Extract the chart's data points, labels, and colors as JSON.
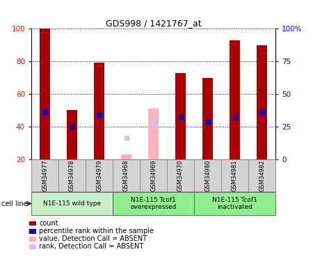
{
  "title": "GDS998 / 1421767_at",
  "samples": [
    "GSM34977",
    "GSM34978",
    "GSM34979",
    "GSM34968",
    "GSM34969",
    "GSM34970",
    "GSM34980",
    "GSM34981",
    "GSM34982"
  ],
  "count_values": [
    100,
    50,
    79,
    null,
    null,
    73,
    70,
    93,
    90
  ],
  "percentile_values": [
    49,
    40,
    47,
    null,
    null,
    46,
    43,
    46,
    49
  ],
  "absent_count": [
    null,
    null,
    null,
    23,
    51,
    null,
    null,
    null,
    null
  ],
  "absent_rank": [
    null,
    null,
    null,
    33,
    42,
    null,
    null,
    null,
    null
  ],
  "ylim": [
    20,
    100
  ],
  "yticks_left": [
    20,
    40,
    60,
    80,
    100
  ],
  "yticks_right_positions": [
    20,
    40,
    60,
    80,
    100
  ],
  "yticks_right_labels": [
    "0",
    "25",
    "50",
    "75",
    "100%"
  ],
  "groups": [
    {
      "label": "N1E-115 wild type",
      "indices": [
        0,
        1,
        2
      ],
      "color": "#c8f0c8"
    },
    {
      "label": "N1E-115 Tcof1\noverexpressed",
      "indices": [
        3,
        4,
        5
      ],
      "color": "#90ee90"
    },
    {
      "label": "N1E-115 Tcof1\ninactivated",
      "indices": [
        6,
        7,
        8
      ],
      "color": "#90ee90"
    }
  ],
  "bar_width": 0.4,
  "count_color": "#aa0000",
  "percentile_color": "#0000cc",
  "absent_count_color": "#ffb0b8",
  "absent_rank_color": "#c0c8ff",
  "grid_color": "#000000",
  "tick_bg_color": "#d3d3d3",
  "cell_line_label": "cell line",
  "legend_items": [
    {
      "label": "count",
      "color": "#aa0000"
    },
    {
      "label": "percentile rank within the sample",
      "color": "#0000cc"
    },
    {
      "label": "value, Detection Call = ABSENT",
      "color": "#ffb0b8"
    },
    {
      "label": "rank, Detection Call = ABSENT",
      "color": "#c0c8ff"
    }
  ]
}
